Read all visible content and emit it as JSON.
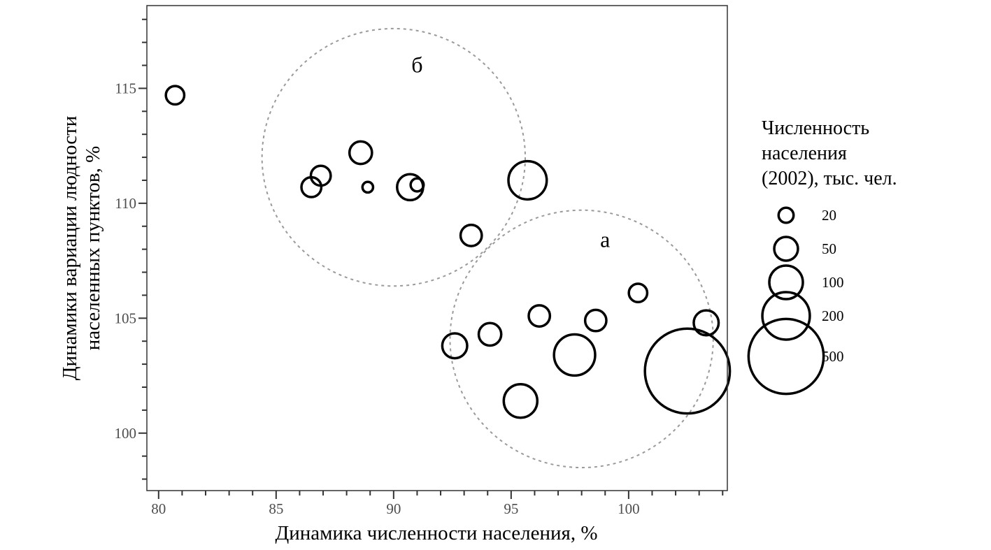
{
  "chart_data": {
    "type": "scatter",
    "title": "",
    "xlabel": "Динамика численности населения, %",
    "ylabel": [
      "Динамики вариации людности",
      "населенных пунктов, %"
    ],
    "xlim": [
      79.5,
      104.2
    ],
    "ylim": [
      97.5,
      118.6
    ],
    "x_ticks": [
      80,
      85,
      90,
      95,
      100
    ],
    "x_tick_labels": [
      "80",
      "85",
      "90",
      "95",
      "100"
    ],
    "y_ticks": [
      100,
      105,
      110,
      115
    ],
    "y_tick_labels": [
      "100",
      "105",
      "110",
      "115"
    ],
    "grid": false,
    "size_legend": {
      "title": [
        "Численность",
        "населения",
        "(2002), тыс. чел."
      ],
      "position": "right",
      "entries": [
        {
          "label": "20",
          "value": 20
        },
        {
          "label": "50",
          "value": 50
        },
        {
          "label": "100",
          "value": 100
        },
        {
          "label": "200",
          "value": 200
        },
        {
          "label": "500",
          "value": 500
        }
      ]
    },
    "points": [
      {
        "x": 80.7,
        "y": 114.7,
        "size": 30
      },
      {
        "x": 86.5,
        "y": 110.7,
        "size": 35
      },
      {
        "x": 86.9,
        "y": 111.2,
        "size": 35
      },
      {
        "x": 88.6,
        "y": 112.2,
        "size": 45
      },
      {
        "x": 88.9,
        "y": 110.7,
        "size": 10
      },
      {
        "x": 90.7,
        "y": 110.7,
        "size": 60
      },
      {
        "x": 91.0,
        "y": 110.8,
        "size": 15
      },
      {
        "x": 95.7,
        "y": 111.0,
        "size": 130
      },
      {
        "x": 93.3,
        "y": 108.6,
        "size": 40
      },
      {
        "x": 92.6,
        "y": 103.8,
        "size": 55
      },
      {
        "x": 94.1,
        "y": 104.3,
        "size": 45
      },
      {
        "x": 95.4,
        "y": 101.4,
        "size": 100
      },
      {
        "x": 96.2,
        "y": 105.1,
        "size": 40
      },
      {
        "x": 97.7,
        "y": 103.4,
        "size": 150
      },
      {
        "x": 98.6,
        "y": 104.9,
        "size": 40
      },
      {
        "x": 100.4,
        "y": 106.1,
        "size": 30
      },
      {
        "x": 102.5,
        "y": 102.7,
        "size": 640
      },
      {
        "x": 103.3,
        "y": 104.8,
        "size": 55
      }
    ],
    "groups": [
      {
        "label": "б",
        "center": [
          90.0,
          112.0
        ],
        "radius_x": 5.6,
        "radius_y": 5.6,
        "label_at": [
          91.0,
          116.0
        ]
      },
      {
        "label": "а",
        "center": [
          98.0,
          104.1
        ],
        "radius_x": 5.6,
        "radius_y": 5.6,
        "label_at": [
          99.0,
          108.4
        ]
      }
    ],
    "colors": {
      "points": "#000000",
      "group_circle": "#9a9a9a",
      "panel_border": "#333333",
      "ticks": "#333333",
      "tick_text": "#4d4d4d"
    }
  }
}
